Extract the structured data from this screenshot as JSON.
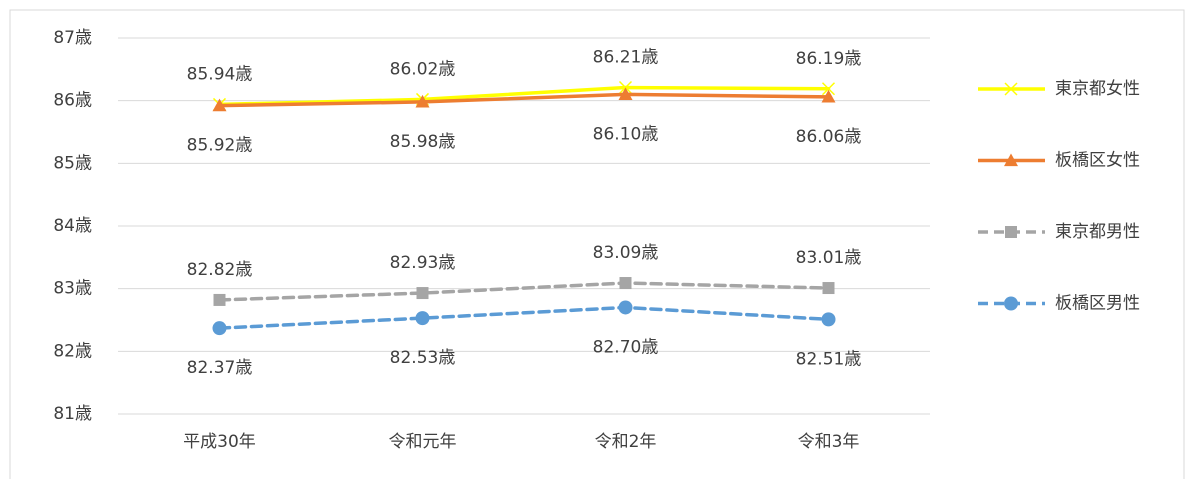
{
  "chart_data": {
    "type": "line",
    "categories": [
      "平成30年",
      "令和元年",
      "令和2年",
      "令和3年"
    ],
    "ylim": [
      81,
      87
    ],
    "yticks": [
      {
        "value": 81,
        "label": "81歳"
      },
      {
        "value": 82,
        "label": "82歳"
      },
      {
        "value": 83,
        "label": "83歳"
      },
      {
        "value": 84,
        "label": "84歳"
      },
      {
        "value": 85,
        "label": "85歳"
      },
      {
        "value": 86,
        "label": "86歳"
      },
      {
        "value": 87,
        "label": "87歳"
      }
    ],
    "grid": true,
    "legend": "right",
    "series": [
      {
        "name": "東京都女性",
        "color": "#ffff00",
        "marker": "x",
        "dashed": false,
        "label_position": "above",
        "values": [
          85.94,
          86.02,
          86.21,
          86.19
        ],
        "value_labels": [
          "85.94歳",
          "86.02歳",
          "86.21歳",
          "86.19歳"
        ]
      },
      {
        "name": "板橋区女性",
        "color": "#ed7d31",
        "marker": "triangle",
        "dashed": false,
        "label_position": "below",
        "values": [
          85.92,
          85.98,
          86.1,
          86.06
        ],
        "value_labels": [
          "85.92歳",
          "85.98歳",
          "86.10歳",
          "86.06歳"
        ]
      },
      {
        "name": "東京都男性",
        "color": "#a5a5a5",
        "marker": "square",
        "dashed": true,
        "label_position": "above",
        "values": [
          82.82,
          82.93,
          83.09,
          83.01
        ],
        "value_labels": [
          "82.82歳",
          "82.93歳",
          "83.09歳",
          "83.01歳"
        ]
      },
      {
        "name": "板橋区男性",
        "color": "#5b9bd5",
        "marker": "circle",
        "dashed": true,
        "label_position": "below",
        "values": [
          82.37,
          82.53,
          82.7,
          82.51
        ],
        "value_labels": [
          "82.37歳",
          "82.53歳",
          "82.70歳",
          "82.51歳"
        ]
      }
    ]
  }
}
